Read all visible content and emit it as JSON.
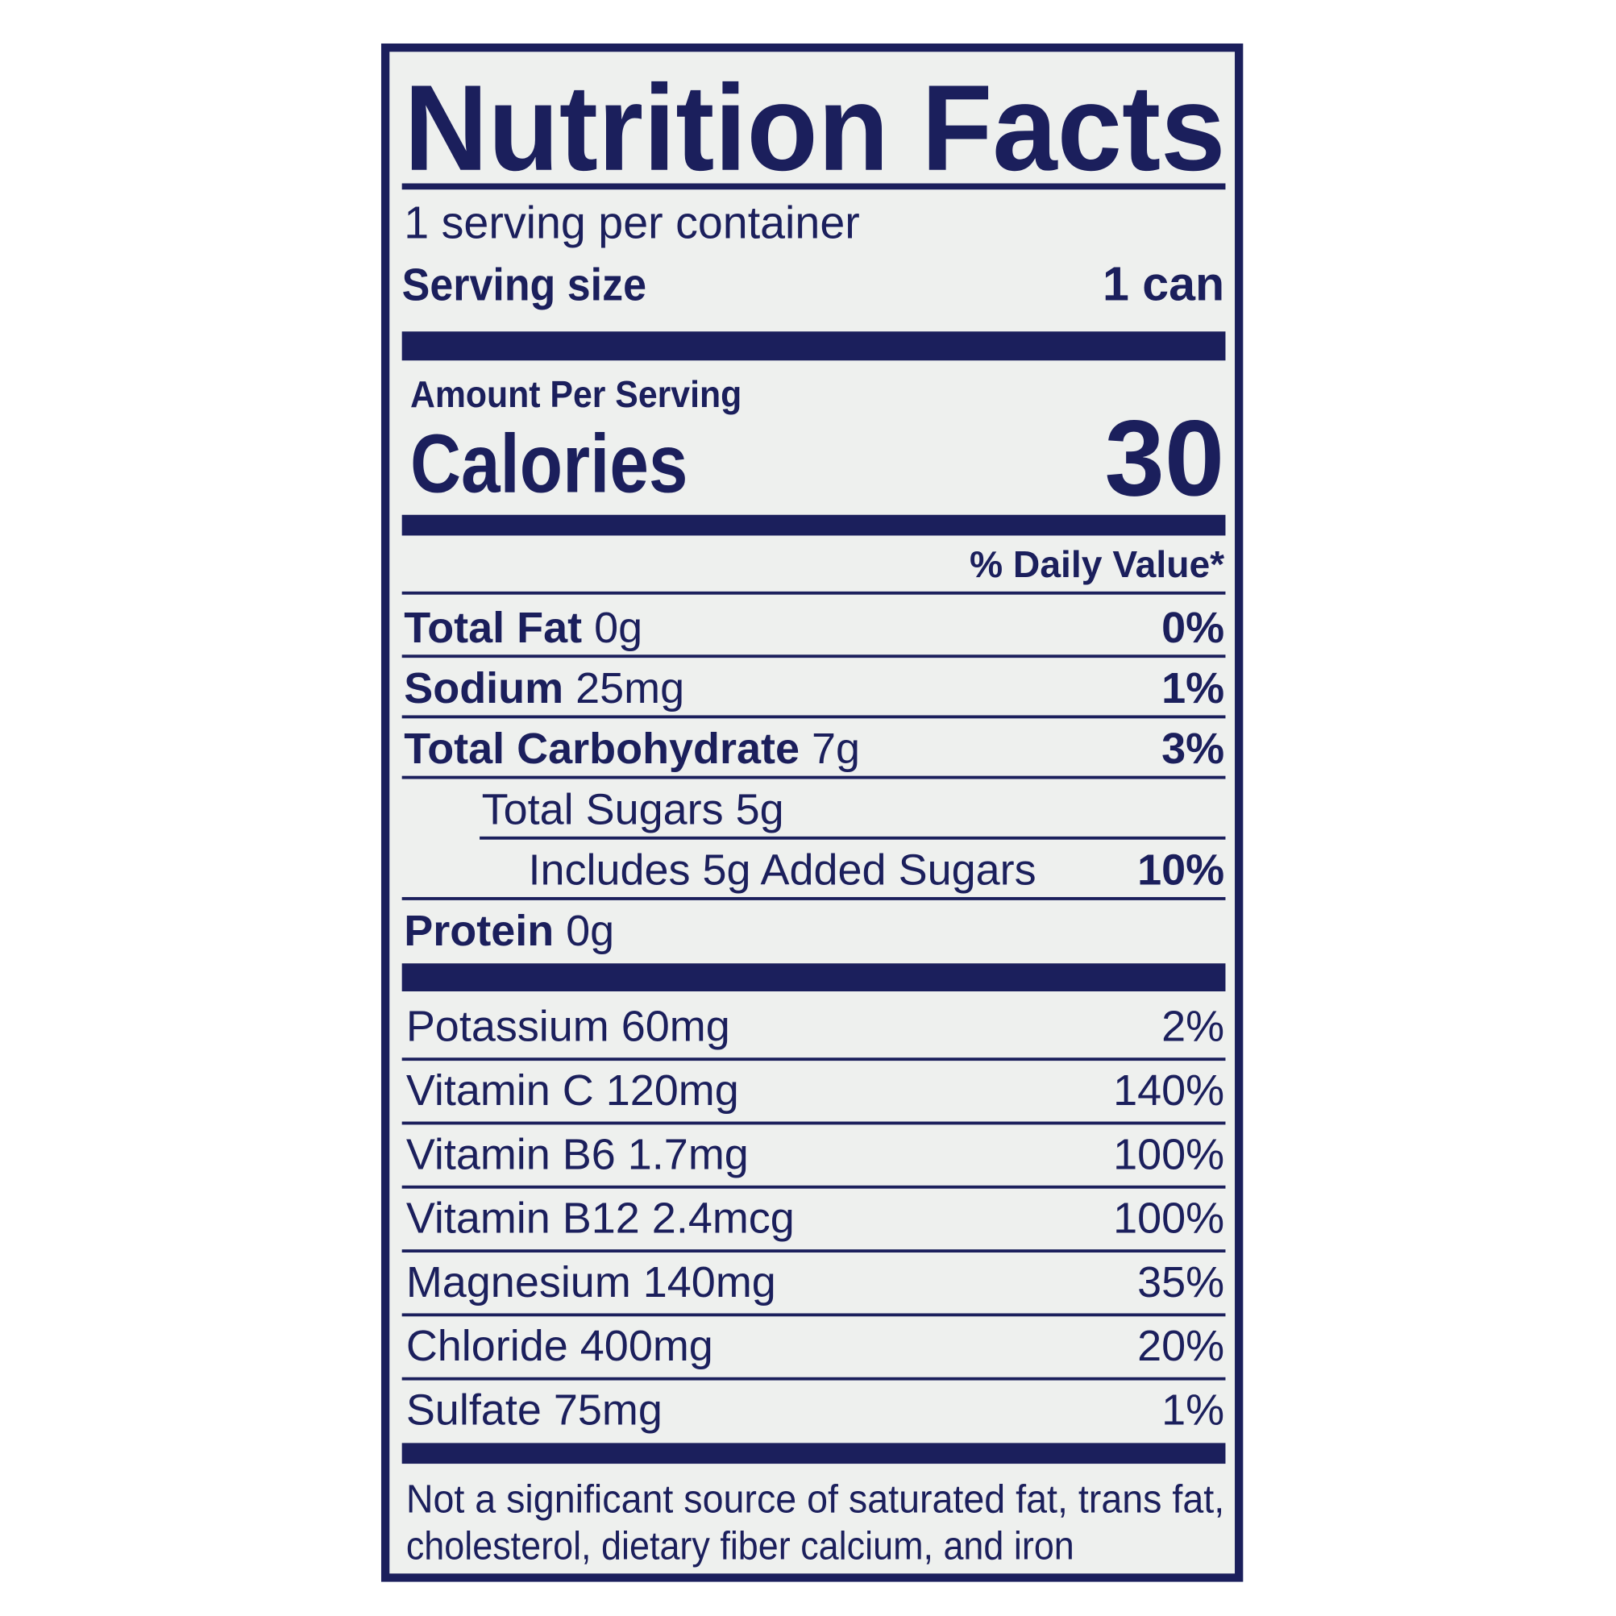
{
  "title": "Nutrition Facts",
  "servings": "1 serving per container",
  "serving_size": {
    "label": "Serving size",
    "value": "1 can"
  },
  "amount_per_serving": "Amount Per Serving",
  "calories": {
    "label": "Calories",
    "value": "30"
  },
  "daily_value_header": "% Daily Value*",
  "nutrients": [
    {
      "name": "Total Fat",
      "amount": "0g",
      "dv": "0%"
    },
    {
      "name": "Sodium",
      "amount": "25mg",
      "dv": "1%"
    },
    {
      "name": "Total Carbohydrate",
      "amount": "7g",
      "dv": "3%"
    },
    {
      "name": "Total Sugars",
      "amount": "5g"
    },
    {
      "name": "Includes 5g Added Sugars",
      "dv": "10%"
    },
    {
      "name": "Protein",
      "amount": "0g"
    }
  ],
  "minerals": [
    {
      "name": "Potassium 60mg",
      "dv": "2%"
    },
    {
      "name": "Vitamin C 120mg",
      "dv": "140%"
    },
    {
      "name": "Vitamin B6 1.7mg",
      "dv": "100%"
    },
    {
      "name": "Vitamin B12 2.4mcg",
      "dv": "100%"
    },
    {
      "name": "Magnesium 140mg",
      "dv": "35%"
    },
    {
      "name": "Chloride 400mg",
      "dv": "20%"
    },
    {
      "name": "Sulfate 75mg",
      "dv": "1%"
    }
  ],
  "footnote": [
    "Not a significant source of saturated fat, trans fat,",
    "cholesterol, dietary fiber calcium, and iron"
  ]
}
